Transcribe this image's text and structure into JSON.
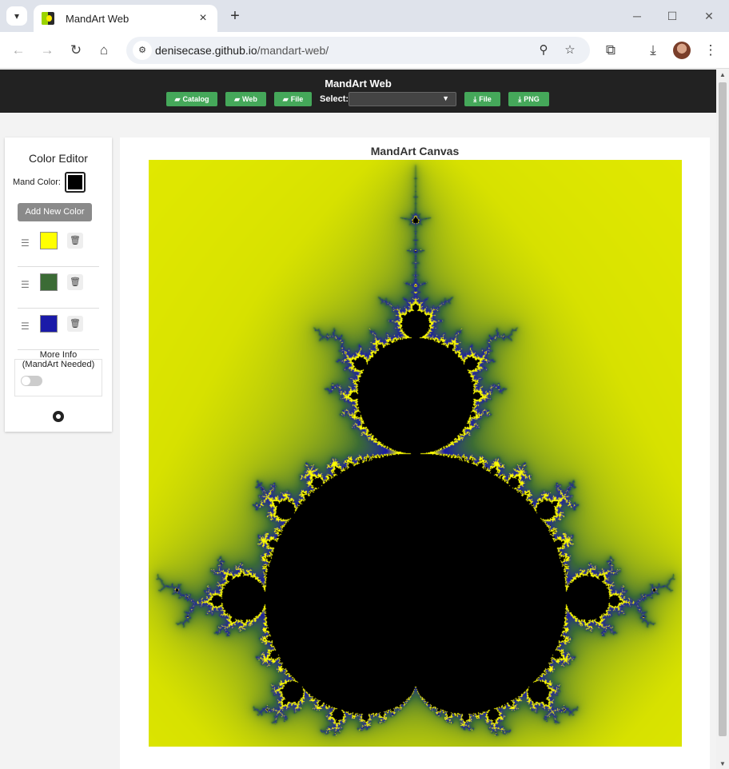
{
  "browser": {
    "tab_title": "MandArt Web",
    "url_host": "denisecase.github.io",
    "url_path": "/mandart-web/",
    "minimize_glyph": "─",
    "maximize_glyph": "☐",
    "close_glyph": "✕"
  },
  "app": {
    "title": "MandArt Web",
    "buttons": {
      "catalog": "Catalog",
      "web": "Web",
      "file_open": "File",
      "file_save": "File",
      "png": "PNG"
    },
    "select_label": "Select:",
    "select_value": ""
  },
  "sidebar": {
    "title": "Color Editor",
    "mand_color_label": "Mand Color:",
    "mand_color": "#000000",
    "add_color_label": "Add New Color",
    "colors": [
      {
        "hex": "#ffff00"
      },
      {
        "hex": "#3b6b35"
      },
      {
        "hex": "#1a1aa8"
      }
    ],
    "more_info_line1": "More Info",
    "more_info_line2": "(MandArt Needed)",
    "toggle_on": false
  },
  "canvas": {
    "title": "MandArt Canvas"
  },
  "colors": {
    "header_bg": "#222222",
    "button_green": "#45a85a",
    "art_bg_yellow": "#ffff00",
    "art_mid_blue": "#2424b0"
  }
}
